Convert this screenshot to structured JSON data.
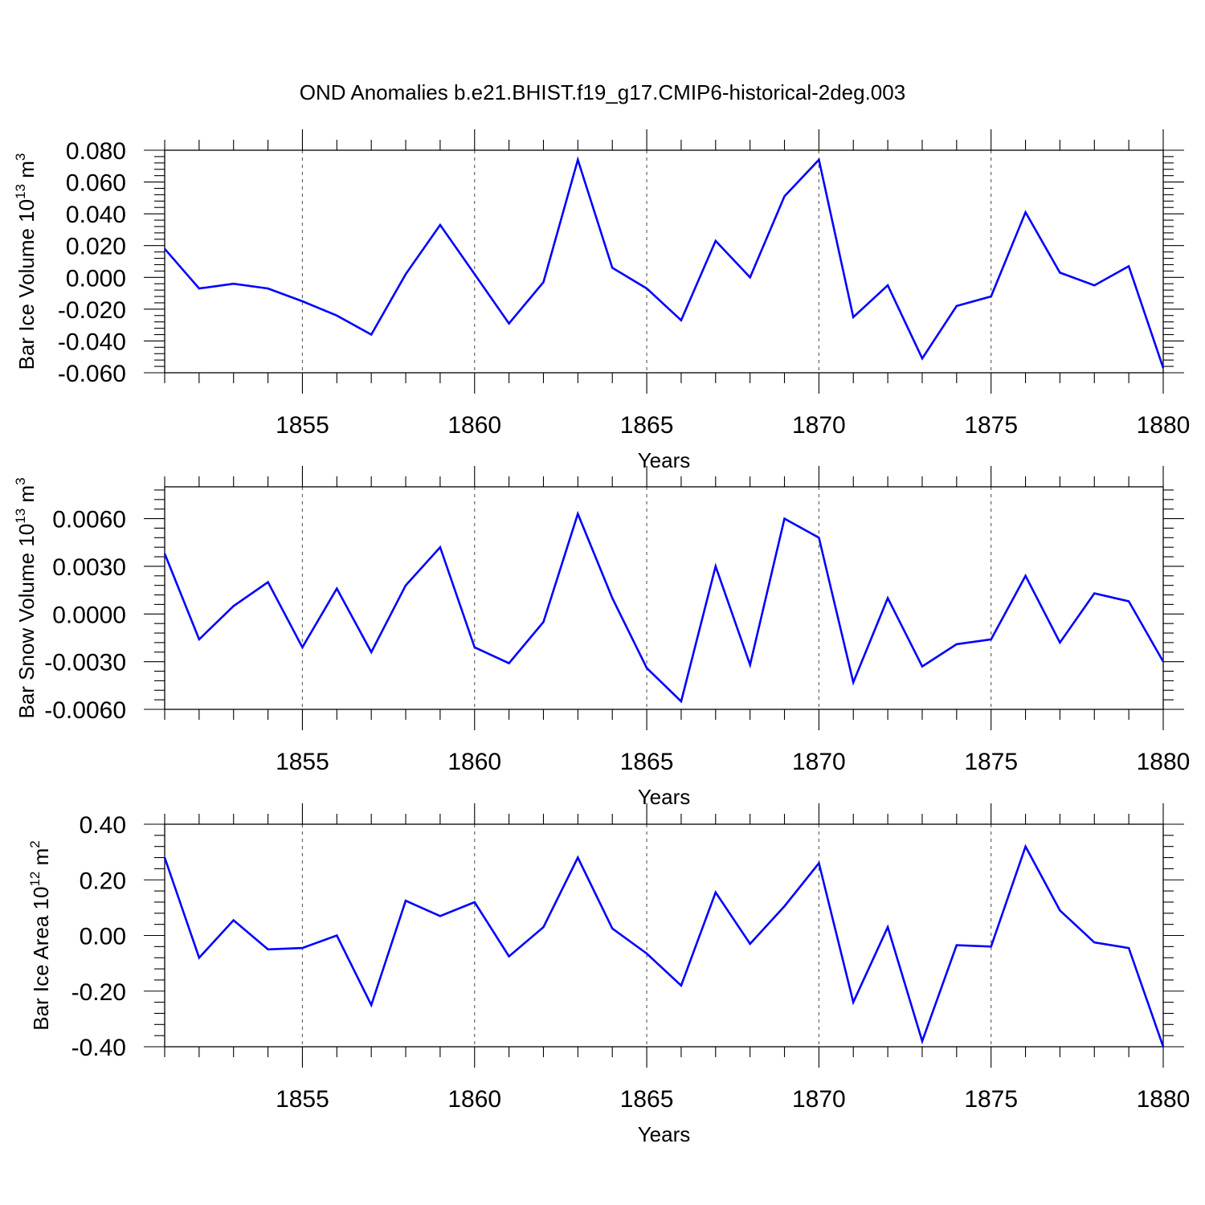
{
  "title": "OND Anomalies b.e21.BHIST.f19_g17.CMIP6-historical-2deg.003",
  "chart_data": [
    {
      "type": "line",
      "ylabel": "Bar Ice Volume 10",
      "ylabel_exp": "13",
      "ylabel_unit": " m",
      "ylabel_unit_exp": "3",
      "xlabel": "Years",
      "xlim": [
        1851,
        1880
      ],
      "ylim": [
        -0.06,
        0.08
      ],
      "x_ticks": [
        1855,
        1860,
        1865,
        1870,
        1875,
        1880
      ],
      "y_ticks": [
        -0.06,
        -0.04,
        -0.02,
        0.0,
        0.02,
        0.04,
        0.06,
        0.08
      ],
      "y_tick_labels": [
        "-0.060",
        "-0.040",
        "-0.020",
        "0.000",
        "0.020",
        "0.040",
        "0.060",
        "0.080"
      ],
      "grid": "vertical dashed at major x ticks",
      "series": [
        {
          "color": "#0000ff",
          "x": [
            1851,
            1852,
            1853,
            1854,
            1855,
            1856,
            1857,
            1858,
            1859,
            1860,
            1861,
            1862,
            1863,
            1864,
            1865,
            1866,
            1867,
            1868,
            1869,
            1870,
            1871,
            1872,
            1873,
            1874,
            1875,
            1876,
            1877,
            1878,
            1879,
            1880
          ],
          "values": [
            0.018,
            -0.007,
            -0.004,
            -0.007,
            -0.015,
            -0.024,
            -0.036,
            0.002,
            0.033,
            0.002,
            -0.029,
            -0.003,
            0.074,
            0.006,
            -0.007,
            -0.027,
            0.023,
            0.0,
            0.051,
            0.074,
            -0.025,
            -0.005,
            -0.051,
            -0.018,
            -0.012,
            0.041,
            0.003,
            -0.005,
            0.007,
            -0.057
          ]
        }
      ]
    },
    {
      "type": "line",
      "ylabel": "Bar Snow Volume 10",
      "ylabel_exp": "13",
      "ylabel_unit": " m",
      "ylabel_unit_exp": "3",
      "xlabel": "Years",
      "xlim": [
        1851,
        1880
      ],
      "ylim": [
        -0.006,
        0.008
      ],
      "x_ticks": [
        1855,
        1860,
        1865,
        1870,
        1875,
        1880
      ],
      "y_ticks": [
        -0.006,
        -0.003,
        0.0,
        0.003,
        0.006
      ],
      "y_tick_labels": [
        "-0.0060",
        "-0.0030",
        "0.0000",
        "0.0030",
        "0.0060"
      ],
      "grid": "vertical dashed at major x ticks",
      "series": [
        {
          "color": "#0000ff",
          "x": [
            1851,
            1852,
            1853,
            1854,
            1855,
            1856,
            1857,
            1858,
            1859,
            1860,
            1861,
            1862,
            1863,
            1864,
            1865,
            1866,
            1867,
            1868,
            1869,
            1870,
            1871,
            1872,
            1873,
            1874,
            1875,
            1876,
            1877,
            1878,
            1879,
            1880
          ],
          "values": [
            0.0038,
            -0.0016,
            0.0005,
            0.002,
            -0.0021,
            0.0016,
            -0.0024,
            0.0018,
            0.0042,
            -0.0021,
            -0.0031,
            -0.0005,
            0.0063,
            0.001,
            -0.0034,
            -0.0055,
            0.003,
            -0.0032,
            0.006,
            0.0048,
            -0.0043,
            0.001,
            -0.0033,
            -0.0019,
            -0.0016,
            0.0024,
            -0.0018,
            0.0013,
            0.0008,
            -0.003
          ]
        }
      ]
    },
    {
      "type": "line",
      "ylabel": "Bar Ice Area 10",
      "ylabel_exp": "12",
      "ylabel_unit": " m",
      "ylabel_unit_exp": "2",
      "xlabel": "Years",
      "xlim": [
        1851,
        1880
      ],
      "ylim": [
        -0.4,
        0.4
      ],
      "x_ticks": [
        1855,
        1860,
        1865,
        1870,
        1875,
        1880
      ],
      "y_ticks": [
        -0.4,
        -0.2,
        0.0,
        0.2,
        0.4
      ],
      "y_tick_labels": [
        "-0.40",
        "-0.20",
        "0.00",
        "0.20",
        "0.40"
      ],
      "grid": "vertical dashed at major x ticks",
      "series": [
        {
          "color": "#0000ff",
          "x": [
            1851,
            1852,
            1853,
            1854,
            1855,
            1856,
            1857,
            1858,
            1859,
            1860,
            1861,
            1862,
            1863,
            1864,
            1865,
            1866,
            1867,
            1868,
            1869,
            1870,
            1871,
            1872,
            1873,
            1874,
            1875,
            1876,
            1877,
            1878,
            1879,
            1880
          ],
          "values": [
            0.28,
            -0.08,
            0.055,
            -0.05,
            -0.045,
            0.0,
            -0.25,
            0.125,
            0.07,
            0.12,
            -0.075,
            0.03,
            0.28,
            0.025,
            -0.065,
            -0.18,
            0.155,
            -0.03,
            0.105,
            0.26,
            -0.24,
            0.03,
            -0.38,
            -0.035,
            -0.04,
            0.32,
            0.09,
            -0.025,
            -0.045,
            -0.4
          ]
        }
      ]
    }
  ]
}
